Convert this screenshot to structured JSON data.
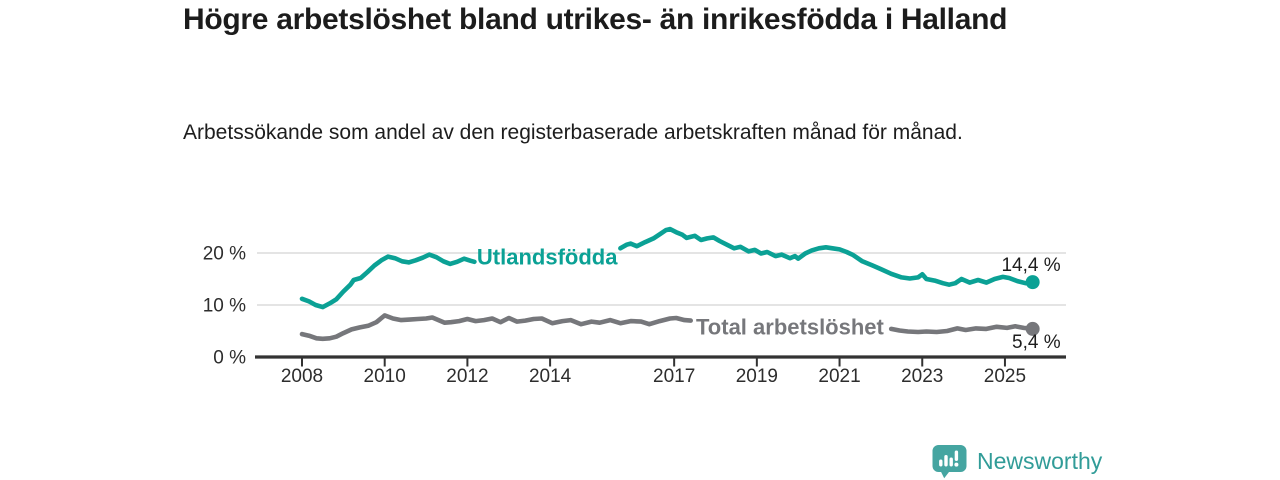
{
  "header": {
    "title": "Högre arbetslöshet bland utrikes- än inrikesfödda i Halland",
    "subtitle": "Arbetssökande som andel av den registerbaserade arbetskraften månad för månad."
  },
  "footer": {
    "brand": "Newsworthy",
    "logo_icon": "bar-chart-speech-bubble",
    "brand_text_color": "#319c98",
    "brand_icon_color": "#45a5a1"
  },
  "colors": {
    "background": "#ffffff",
    "axis": "#333333",
    "gridline": "#dcdcdc",
    "text": "#1d1d1d",
    "series_foreign_born": "#0ba195",
    "series_total": "#76777b"
  },
  "chart_data": {
    "type": "line",
    "title": "Högre arbetslöshet bland utrikes- än inrikesfödda i Halland",
    "subtitle": "Arbetssökande som andel av den registerbaserade arbetskraften månad för månad.",
    "unit": "%",
    "grid": "horizontal",
    "legend_position": "inline-on-line",
    "x_axis": {
      "ticks": [
        2008,
        2010,
        2012,
        2014,
        2017,
        2019,
        2021,
        2023,
        2025
      ],
      "range": [
        2007.9,
        2026.4
      ]
    },
    "y_axis": {
      "ticks": [
        0,
        10,
        20
      ],
      "tick_labels": [
        "0 %",
        "10 %",
        "20 %"
      ],
      "range": [
        0,
        26
      ]
    },
    "note": "Lines are interrupted where their inline labels are printed",
    "series": [
      {
        "name": "Utlandsfödda",
        "color": "#0ba195",
        "inline_label": {
          "text": "Utlandsfödda",
          "x": 2013.93,
          "y": 19.2
        },
        "end_label": "14,4 %",
        "end_value": 14.4,
        "end_dot": true,
        "points": [
          [
            2008.0,
            11.2
          ],
          [
            2008.17,
            10.7
          ],
          [
            2008.33,
            10.0
          ],
          [
            2008.5,
            9.6
          ],
          [
            2008.67,
            10.3
          ],
          [
            2008.83,
            11.1
          ],
          [
            2009.0,
            12.6
          ],
          [
            2009.17,
            13.9
          ],
          [
            2009.25,
            14.8
          ],
          [
            2009.42,
            15.2
          ],
          [
            2009.58,
            16.3
          ],
          [
            2009.75,
            17.6
          ],
          [
            2009.92,
            18.6
          ],
          [
            2010.08,
            19.3
          ],
          [
            2010.25,
            19.0
          ],
          [
            2010.42,
            18.4
          ],
          [
            2010.58,
            18.2
          ],
          [
            2010.75,
            18.6
          ],
          [
            2010.92,
            19.1
          ],
          [
            2011.08,
            19.7
          ],
          [
            2011.25,
            19.2
          ],
          [
            2011.42,
            18.4
          ],
          [
            2011.58,
            17.9
          ],
          [
            2011.75,
            18.3
          ],
          [
            2011.92,
            18.9
          ],
          [
            2012.08,
            18.5
          ],
          [
            2012.17,
            18.3
          ],
          [
            2015.7,
            20.9
          ],
          [
            2015.85,
            21.6
          ],
          [
            2015.95,
            21.8
          ],
          [
            2016.1,
            21.3
          ],
          [
            2016.3,
            22.1
          ],
          [
            2016.5,
            22.8
          ],
          [
            2016.65,
            23.6
          ],
          [
            2016.8,
            24.4
          ],
          [
            2016.9,
            24.6
          ],
          [
            2017.05,
            24.0
          ],
          [
            2017.2,
            23.5
          ],
          [
            2017.3,
            22.9
          ],
          [
            2017.5,
            23.3
          ],
          [
            2017.65,
            22.5
          ],
          [
            2017.8,
            22.8
          ],
          [
            2017.95,
            23.0
          ],
          [
            2018.1,
            22.3
          ],
          [
            2018.3,
            21.5
          ],
          [
            2018.45,
            20.9
          ],
          [
            2018.6,
            21.2
          ],
          [
            2018.8,
            20.3
          ],
          [
            2018.95,
            20.6
          ],
          [
            2019.1,
            19.9
          ],
          [
            2019.25,
            20.2
          ],
          [
            2019.45,
            19.4
          ],
          [
            2019.6,
            19.7
          ],
          [
            2019.8,
            19.0
          ],
          [
            2019.92,
            19.4
          ],
          [
            2020.0,
            18.9
          ],
          [
            2020.17,
            19.9
          ],
          [
            2020.33,
            20.5
          ],
          [
            2020.5,
            20.9
          ],
          [
            2020.67,
            21.1
          ],
          [
            2020.83,
            20.9
          ],
          [
            2021.0,
            20.7
          ],
          [
            2021.17,
            20.2
          ],
          [
            2021.33,
            19.6
          ],
          [
            2021.55,
            18.4
          ],
          [
            2021.8,
            17.6
          ],
          [
            2022.0,
            16.9
          ],
          [
            2022.25,
            16.0
          ],
          [
            2022.5,
            15.3
          ],
          [
            2022.7,
            15.1
          ],
          [
            2022.9,
            15.3
          ],
          [
            2023.0,
            15.9
          ],
          [
            2023.1,
            15.0
          ],
          [
            2023.3,
            14.7
          ],
          [
            2023.5,
            14.2
          ],
          [
            2023.65,
            13.9
          ],
          [
            2023.8,
            14.2
          ],
          [
            2023.95,
            15.0
          ],
          [
            2024.15,
            14.3
          ],
          [
            2024.35,
            14.8
          ],
          [
            2024.55,
            14.3
          ],
          [
            2024.75,
            15.0
          ],
          [
            2024.95,
            15.4
          ],
          [
            2025.1,
            15.2
          ],
          [
            2025.3,
            14.6
          ],
          [
            2025.5,
            14.2
          ],
          [
            2025.67,
            14.4
          ]
        ]
      },
      {
        "name": "Total arbetslöshet",
        "color": "#76777b",
        "inline_label": {
          "text": "Total arbetslöshet",
          "x": 2019.8,
          "y": 5.75
        },
        "end_label": "5,4 %",
        "end_value": 5.4,
        "end_dot": true,
        "points": [
          [
            2008.0,
            4.4
          ],
          [
            2008.17,
            4.1
          ],
          [
            2008.35,
            3.6
          ],
          [
            2008.5,
            3.5
          ],
          [
            2008.67,
            3.6
          ],
          [
            2008.83,
            3.9
          ],
          [
            2009.0,
            4.6
          ],
          [
            2009.2,
            5.3
          ],
          [
            2009.4,
            5.7
          ],
          [
            2009.6,
            6.0
          ],
          [
            2009.8,
            6.7
          ],
          [
            2010.0,
            8.0
          ],
          [
            2010.2,
            7.4
          ],
          [
            2010.4,
            7.1
          ],
          [
            2010.6,
            7.2
          ],
          [
            2010.8,
            7.3
          ],
          [
            2011.0,
            7.4
          ],
          [
            2011.15,
            7.6
          ],
          [
            2011.3,
            7.1
          ],
          [
            2011.45,
            6.6
          ],
          [
            2011.6,
            6.7
          ],
          [
            2011.8,
            6.9
          ],
          [
            2012.0,
            7.3
          ],
          [
            2012.2,
            6.9
          ],
          [
            2012.4,
            7.1
          ],
          [
            2012.6,
            7.4
          ],
          [
            2012.8,
            6.7
          ],
          [
            2013.0,
            7.5
          ],
          [
            2013.2,
            6.8
          ],
          [
            2013.4,
            7.0
          ],
          [
            2013.6,
            7.3
          ],
          [
            2013.8,
            7.4
          ],
          [
            2014.05,
            6.5
          ],
          [
            2014.3,
            6.9
          ],
          [
            2014.5,
            7.1
          ],
          [
            2014.75,
            6.3
          ],
          [
            2015.0,
            6.8
          ],
          [
            2015.2,
            6.6
          ],
          [
            2015.45,
            7.1
          ],
          [
            2015.7,
            6.5
          ],
          [
            2015.95,
            6.9
          ],
          [
            2016.2,
            6.8
          ],
          [
            2016.4,
            6.3
          ],
          [
            2016.65,
            6.9
          ],
          [
            2016.9,
            7.4
          ],
          [
            2017.05,
            7.5
          ],
          [
            2017.25,
            7.1
          ],
          [
            2017.4,
            7.0
          ],
          [
            2022.25,
            5.4
          ],
          [
            2022.45,
            5.1
          ],
          [
            2022.65,
            4.9
          ],
          [
            2022.9,
            4.8
          ],
          [
            2023.1,
            4.9
          ],
          [
            2023.35,
            4.8
          ],
          [
            2023.6,
            5.0
          ],
          [
            2023.85,
            5.5
          ],
          [
            2024.05,
            5.2
          ],
          [
            2024.3,
            5.5
          ],
          [
            2024.55,
            5.4
          ],
          [
            2024.8,
            5.8
          ],
          [
            2025.05,
            5.6
          ],
          [
            2025.25,
            5.9
          ],
          [
            2025.45,
            5.6
          ],
          [
            2025.67,
            5.4
          ]
        ]
      }
    ]
  }
}
